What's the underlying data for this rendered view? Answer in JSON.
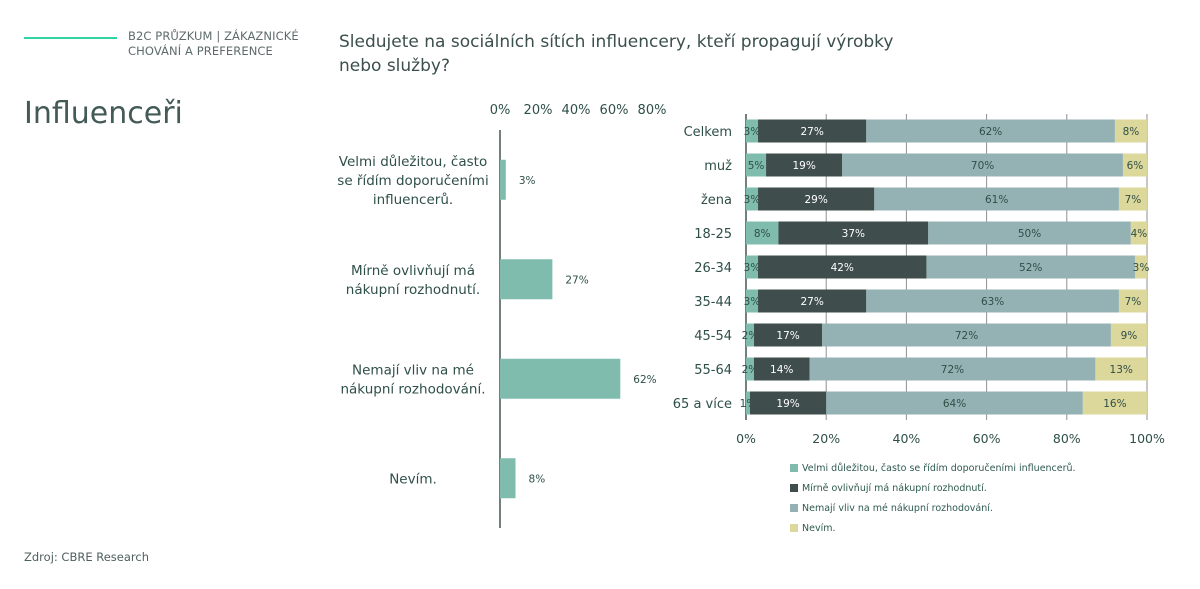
{
  "header": {
    "kicker_line1": "B2C PRŮZKUM |  ZÁKAZNICKÉ",
    "kicker_line2": "CHOVÁNÍ A PREFERENCE",
    "title": "Influenceři",
    "question": "Sledujete na sociálních sítích influencery, kteří propagují výrobky nebo služby?"
  },
  "footer": {
    "source": "Zdroj: CBRE Research"
  },
  "colors": {
    "teal": "#7fbcad",
    "dark": "#3f4d4c",
    "grey": "#94b2b3",
    "sand": "#dcd79a",
    "text": "#1f3f3a"
  },
  "chart_data": [
    {
      "type": "bar",
      "orientation": "horizontal",
      "title": "",
      "categories": [
        "Velmi důležitou, často se řídím doporučeními influencerů.",
        "Mírně ovlivňují má nákupní rozhodnutí.",
        "Nemají vliv na mé nákupní rozhodování.",
        "Nevím."
      ],
      "category_lines": [
        [
          "Velmi důležitou, často",
          "se řídím doporučeními",
          "influencerů."
        ],
        [
          "Mírně ovlivňují má",
          "nákupní rozhodnutí."
        ],
        [
          "Nemají vliv na mé",
          "nákupní rozhodování."
        ],
        [
          "Nevím."
        ]
      ],
      "values": [
        3,
        27,
        62,
        8
      ],
      "data_labels": [
        "3%",
        "27%",
        "62%",
        "8%"
      ],
      "xlim": [
        0,
        80
      ],
      "xticks": [
        "0%",
        "20%",
        "40%",
        "60%",
        "80%"
      ],
      "xaxis_position": "top",
      "grid": false
    },
    {
      "type": "bar",
      "orientation": "horizontal",
      "stacked": "percent",
      "categories": [
        "Celkem",
        "muž",
        "žena",
        "18-25",
        "26-34",
        "35-44",
        "45-54",
        "55-64",
        "65 a více"
      ],
      "series": [
        {
          "name": "Velmi důležitou, často se řídím doporučeními influencerů.",
          "color": "#7fbcad",
          "values": [
            3,
            5,
            3,
            8,
            3,
            3,
            2,
            2,
            1
          ]
        },
        {
          "name": "Mírně ovlivňují má nákupní rozhodnutí.",
          "color": "#3f4d4c",
          "values": [
            27,
            19,
            29,
            37,
            42,
            27,
            17,
            14,
            19
          ]
        },
        {
          "name": "Nemají vliv na mé nákupní rozhodování.",
          "color": "#94b2b3",
          "values": [
            62,
            70,
            61,
            50,
            52,
            63,
            72,
            72,
            64
          ]
        },
        {
          "name": "Nevím.",
          "color": "#dcd79a",
          "values": [
            8,
            6,
            7,
            4,
            3,
            7,
            9,
            13,
            16
          ]
        }
      ],
      "xlim": [
        0,
        100
      ],
      "xticks": [
        "0%",
        "20%",
        "40%",
        "60%",
        "80%",
        "100%"
      ],
      "grid": true,
      "legend_position": "bottom"
    }
  ]
}
